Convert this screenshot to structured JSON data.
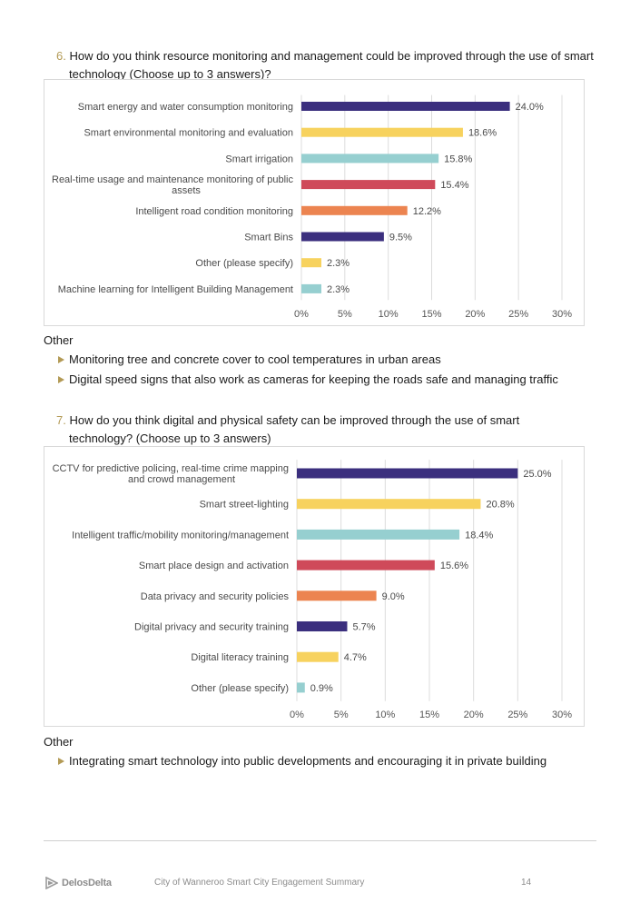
{
  "questions": [
    {
      "number": "6.",
      "text_line1": "How do you think resource monitoring and management could be improved through the use of smart",
      "text_line2": "technology (Choose up to 3 answers)?"
    },
    {
      "number": "7.",
      "text_line1": "How do you think digital and physical safety can be improved through the use of smart",
      "text_line2": "technology? (Choose up to 3 answers)"
    }
  ],
  "colors": {
    "navy": "#3b2f7e",
    "yellow": "#f7d25e",
    "teal": "#96cfd0",
    "red": "#cf4a5a",
    "orange": "#ec8450",
    "accent": "#b39a55"
  },
  "chart_data": [
    {
      "type": "bar",
      "orientation": "horizontal",
      "categories": [
        [
          "Smart energy and water consumption monitoring"
        ],
        [
          "Smart environmental monitoring and evaluation"
        ],
        [
          "Smart irrigation"
        ],
        [
          "Real-time usage and maintenance monitoring of public",
          "assets"
        ],
        [
          "Intelligent road condition monitoring"
        ],
        [
          "Smart Bins"
        ],
        [
          "Other (please specify)"
        ],
        [
          "Machine learning for Intelligent Building Management"
        ]
      ],
      "values": [
        24.0,
        18.6,
        15.8,
        15.4,
        12.2,
        9.5,
        2.3,
        2.3
      ],
      "value_labels": [
        "24.0%",
        "18.6%",
        "15.8%",
        "15.4%",
        "12.2%",
        "9.5%",
        "2.3%",
        "2.3%"
      ],
      "bar_colors": [
        "#3b2f7e",
        "#f7d25e",
        "#96cfd0",
        "#cf4a5a",
        "#ec8450",
        "#3b2f7e",
        "#f7d25e",
        "#96cfd0"
      ],
      "xlim": [
        0,
        30
      ],
      "x_ticks": [
        "0%",
        "5%",
        "10%",
        "15%",
        "20%",
        "25%",
        "30%"
      ],
      "grid": true,
      "title": "",
      "xlabel": "",
      "ylabel": ""
    },
    {
      "type": "bar",
      "orientation": "horizontal",
      "categories": [
        [
          "CCTV for predictive policing, real-time crime mapping",
          "and crowd management"
        ],
        [
          "Smart street-lighting"
        ],
        [
          "Intelligent traffic/mobility monitoring/management"
        ],
        [
          "Smart place design and activation"
        ],
        [
          "Data privacy and security policies"
        ],
        [
          "Digital privacy and security training"
        ],
        [
          "Digital literacy training"
        ],
        [
          "Other (please specify)"
        ]
      ],
      "values": [
        25.0,
        20.8,
        18.4,
        15.6,
        9.0,
        5.7,
        4.7,
        0.9
      ],
      "value_labels": [
        "25.0%",
        "20.8%",
        "18.4%",
        "15.6%",
        "9.0%",
        "5.7%",
        "4.7%",
        "0.9%"
      ],
      "bar_colors": [
        "#3b2f7e",
        "#f7d25e",
        "#96cfd0",
        "#cf4a5a",
        "#ec8450",
        "#3b2f7e",
        "#f7d25e",
        "#96cfd0"
      ],
      "xlim": [
        0,
        30
      ],
      "x_ticks": [
        "0%",
        "5%",
        "10%",
        "15%",
        "20%",
        "25%",
        "30%"
      ],
      "grid": true,
      "title": "",
      "xlabel": "",
      "ylabel": ""
    }
  ],
  "others": [
    {
      "heading": "Other",
      "items": [
        "Monitoring tree and concrete cover to cool temperatures in urban areas",
        "Digital speed signs that also work as cameras for keeping the roads safe and managing traffic"
      ]
    },
    {
      "heading": "Other",
      "items": [
        "Integrating smart technology into public developments and encouraging it in private building"
      ]
    }
  ],
  "footer": {
    "brand": "DelosDelta",
    "logo_icon": "delos-delta-logo-icon",
    "text": "City of Wanneroo Smart City Engagement Summary",
    "page": "14"
  }
}
